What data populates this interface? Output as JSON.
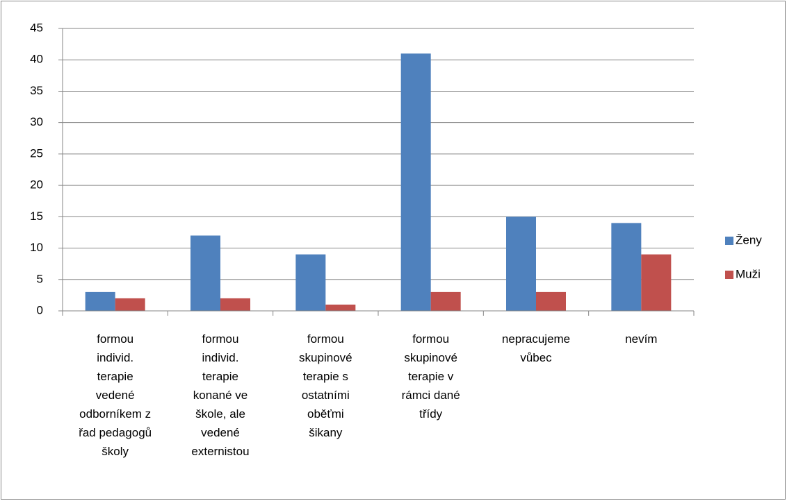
{
  "chart_data": {
    "type": "bar",
    "categories": [
      "formou\nindivid.\nterapie\nvedené\nodborníkem z\nřad pedagogů\nškoly",
      "formou\nindivid.\nterapie\nkonané ve\nškole, ale\nvedené\nexternistou",
      "formou\nskupinové\nterapie s\nostatními\noběťmi\nšikany",
      "formou\nskupinové\nterapie v\nrámci dané\ntřídy",
      "nepracujeme\nvůbec",
      "nevím"
    ],
    "series": [
      {
        "name": "Ženy",
        "color": "#4f81bd",
        "values": [
          3,
          12,
          9,
          41,
          15,
          14
        ]
      },
      {
        "name": "Muži",
        "color": "#c0504d",
        "values": [
          2,
          2,
          1,
          3,
          3,
          9
        ]
      }
    ],
    "ylim": [
      0,
      45
    ],
    "yticks": [
      0,
      5,
      10,
      15,
      20,
      25,
      30,
      35,
      40,
      45
    ],
    "grid": true,
    "legend": "right"
  }
}
